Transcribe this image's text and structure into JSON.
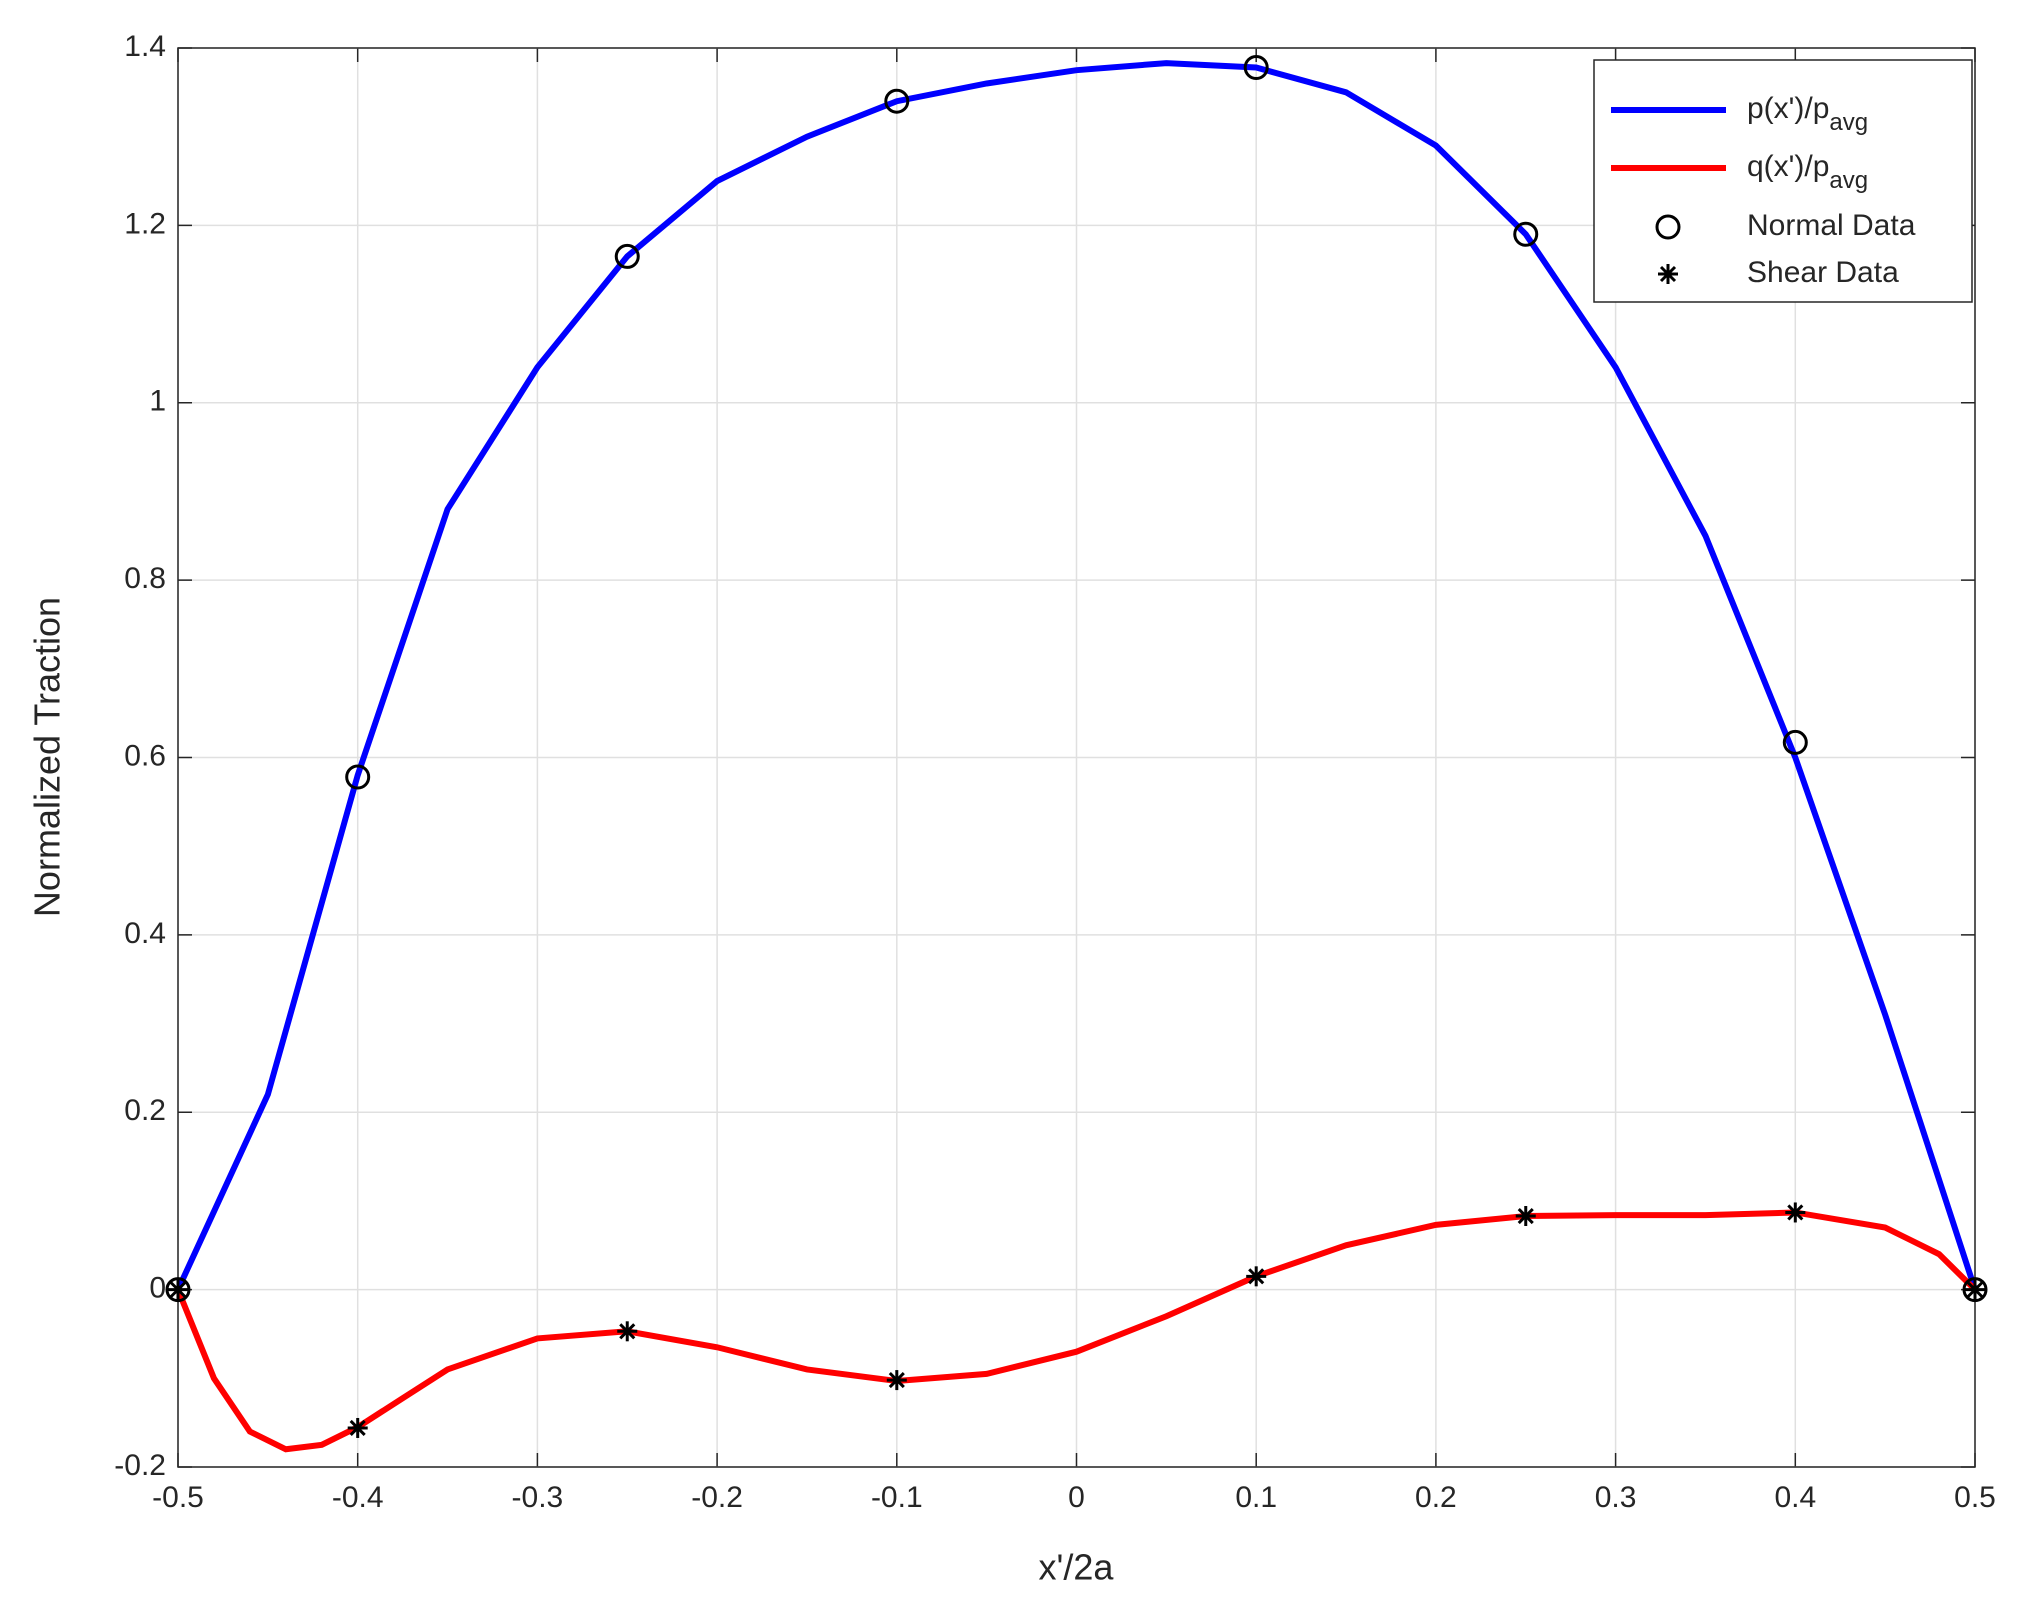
{
  "chart_data": {
    "type": "line",
    "xlabel": "x'/2a",
    "ylabel": "Normalized Traction",
    "xlim": [
      -0.5,
      0.5
    ],
    "ylim": [
      -0.2,
      1.4
    ],
    "xticks": [
      -0.5,
      -0.4,
      -0.3,
      -0.2,
      -0.1,
      0,
      0.1,
      0.2,
      0.3,
      0.4,
      0.5
    ],
    "yticks": [
      -0.2,
      0,
      0.2,
      0.4,
      0.6,
      0.8,
      1,
      1.2,
      1.4
    ],
    "grid": true,
    "legend": "upper right",
    "series": [
      {
        "name": "p(x')/p",
        "name_subscript": "avg",
        "color": "#0000ff",
        "style": "line",
        "x": [
          -0.5,
          -0.45,
          -0.4,
          -0.35,
          -0.3,
          -0.25,
          -0.2,
          -0.15,
          -0.1,
          -0.05,
          0,
          0.05,
          0.1,
          0.15,
          0.2,
          0.25,
          0.3,
          0.35,
          0.4,
          0.45,
          0.5
        ],
        "values": [
          0,
          0.22,
          0.58,
          0.88,
          1.04,
          1.165,
          1.25,
          1.3,
          1.34,
          1.36,
          1.375,
          1.383,
          1.378,
          1.35,
          1.29,
          1.19,
          1.04,
          0.85,
          0.6,
          0.31,
          0
        ]
      },
      {
        "name": "q(x')/p",
        "name_subscript": "avg",
        "color": "#ff0000",
        "style": "line",
        "x": [
          -0.5,
          -0.48,
          -0.46,
          -0.44,
          -0.42,
          -0.4,
          -0.35,
          -0.3,
          -0.25,
          -0.2,
          -0.15,
          -0.1,
          -0.05,
          0,
          0.05,
          0.1,
          0.15,
          0.2,
          0.25,
          0.3,
          0.35,
          0.4,
          0.45,
          0.48,
          0.5
        ],
        "values": [
          0,
          -0.1,
          -0.16,
          -0.18,
          -0.175,
          -0.155,
          -0.09,
          -0.055,
          -0.047,
          -0.065,
          -0.09,
          -0.103,
          -0.095,
          -0.07,
          -0.03,
          0.015,
          0.05,
          0.073,
          0.083,
          0.084,
          0.084,
          0.087,
          0.07,
          0.04,
          0
        ]
      },
      {
        "name": "Normal Data",
        "color": "#000000",
        "style": "circle",
        "x": [
          -0.5,
          -0.4,
          -0.25,
          -0.1,
          0.1,
          0.25,
          0.4,
          0.5
        ],
        "values": [
          0,
          0.578,
          1.165,
          1.34,
          1.378,
          1.19,
          0.617,
          0
        ]
      },
      {
        "name": "Shear Data",
        "color": "#000000",
        "style": "asterisk",
        "x": [
          -0.5,
          -0.4,
          -0.25,
          -0.1,
          0.1,
          0.25,
          0.4,
          0.5
        ],
        "values": [
          0,
          -0.156,
          -0.047,
          -0.102,
          0.015,
          0.083,
          0.087,
          0
        ]
      }
    ]
  }
}
